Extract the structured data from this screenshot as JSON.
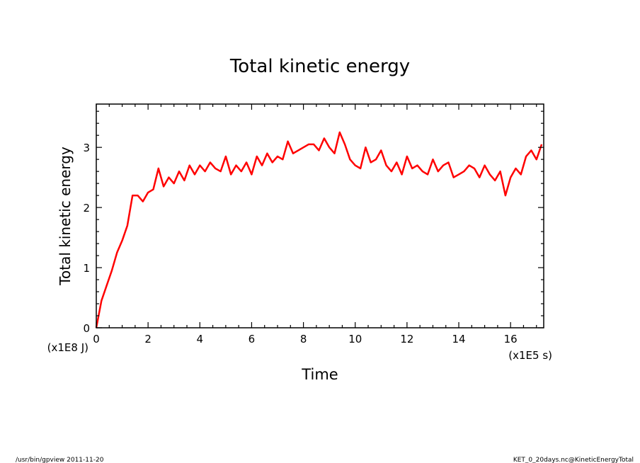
{
  "footer": {
    "left": "/usr/bin/gpview   2011-11-20",
    "right": "KET_0_20days.nc@KineticEnergyTotal"
  },
  "chart_data": {
    "type": "line",
    "title": "Total kinetic energy",
    "xlabel": "Time",
    "ylabel": "Total kinetic energy",
    "x_unit_label": "(x1E5 s)",
    "y_unit_label": "(x1E8 J)",
    "xlim": [
      0,
      17.28
    ],
    "ylim": [
      0,
      3.72
    ],
    "xticks": [
      "0",
      "2",
      "4",
      "6",
      "8",
      "10",
      "12",
      "14",
      "16"
    ],
    "yticks": [
      "0",
      "1",
      "2",
      "3"
    ],
    "grid": false,
    "line_color": "#ff0000",
    "series": [
      {
        "x": [
          0,
          0.2,
          0.4,
          0.6,
          0.8,
          1.0,
          1.2,
          1.4,
          1.6,
          1.8,
          2.0,
          2.2,
          2.4,
          2.6,
          2.8,
          3.0,
          3.2,
          3.4,
          3.6,
          3.8,
          4.0,
          4.2,
          4.4,
          4.6,
          4.8,
          5.0,
          5.2,
          5.4,
          5.6,
          5.8,
          6.0,
          6.2,
          6.4,
          6.6,
          6.8,
          7.0,
          7.2,
          7.4,
          7.6,
          7.8,
          8.0,
          8.2,
          8.4,
          8.6,
          8.8,
          9.0,
          9.2,
          9.4,
          9.6,
          9.8,
          10.0,
          10.2,
          10.4,
          10.6,
          10.8,
          11.0,
          11.2,
          11.4,
          11.6,
          11.8,
          12.0,
          12.2,
          12.4,
          12.6,
          12.8,
          13.0,
          13.2,
          13.4,
          13.6,
          13.8,
          14.0,
          14.2,
          14.4,
          14.6,
          14.8,
          15.0,
          15.2,
          15.4,
          15.6,
          15.8,
          16.0,
          16.2,
          16.4,
          16.6,
          16.8,
          17.0,
          17.2
        ],
        "values": [
          0.0,
          0.45,
          0.7,
          0.95,
          1.25,
          1.45,
          1.7,
          2.2,
          2.2,
          2.1,
          2.25,
          2.3,
          2.65,
          2.35,
          2.5,
          2.4,
          2.6,
          2.45,
          2.7,
          2.55,
          2.7,
          2.6,
          2.75,
          2.65,
          2.6,
          2.85,
          2.55,
          2.7,
          2.6,
          2.75,
          2.55,
          2.85,
          2.7,
          2.9,
          2.75,
          2.85,
          2.8,
          3.1,
          2.9,
          2.95,
          3.0,
          3.05,
          3.05,
          2.95,
          3.15,
          3.0,
          2.9,
          3.25,
          3.05,
          2.8,
          2.7,
          2.65,
          3.0,
          2.75,
          2.8,
          2.95,
          2.7,
          2.6,
          2.75,
          2.55,
          2.85,
          2.65,
          2.7,
          2.6,
          2.55,
          2.8,
          2.6,
          2.7,
          2.75,
          2.5,
          2.55,
          2.6,
          2.7,
          2.65,
          2.5,
          2.7,
          2.55,
          2.45,
          2.6,
          2.2,
          2.5,
          2.65,
          2.55,
          2.85,
          2.95,
          2.8,
          3.05
        ]
      }
    ]
  }
}
